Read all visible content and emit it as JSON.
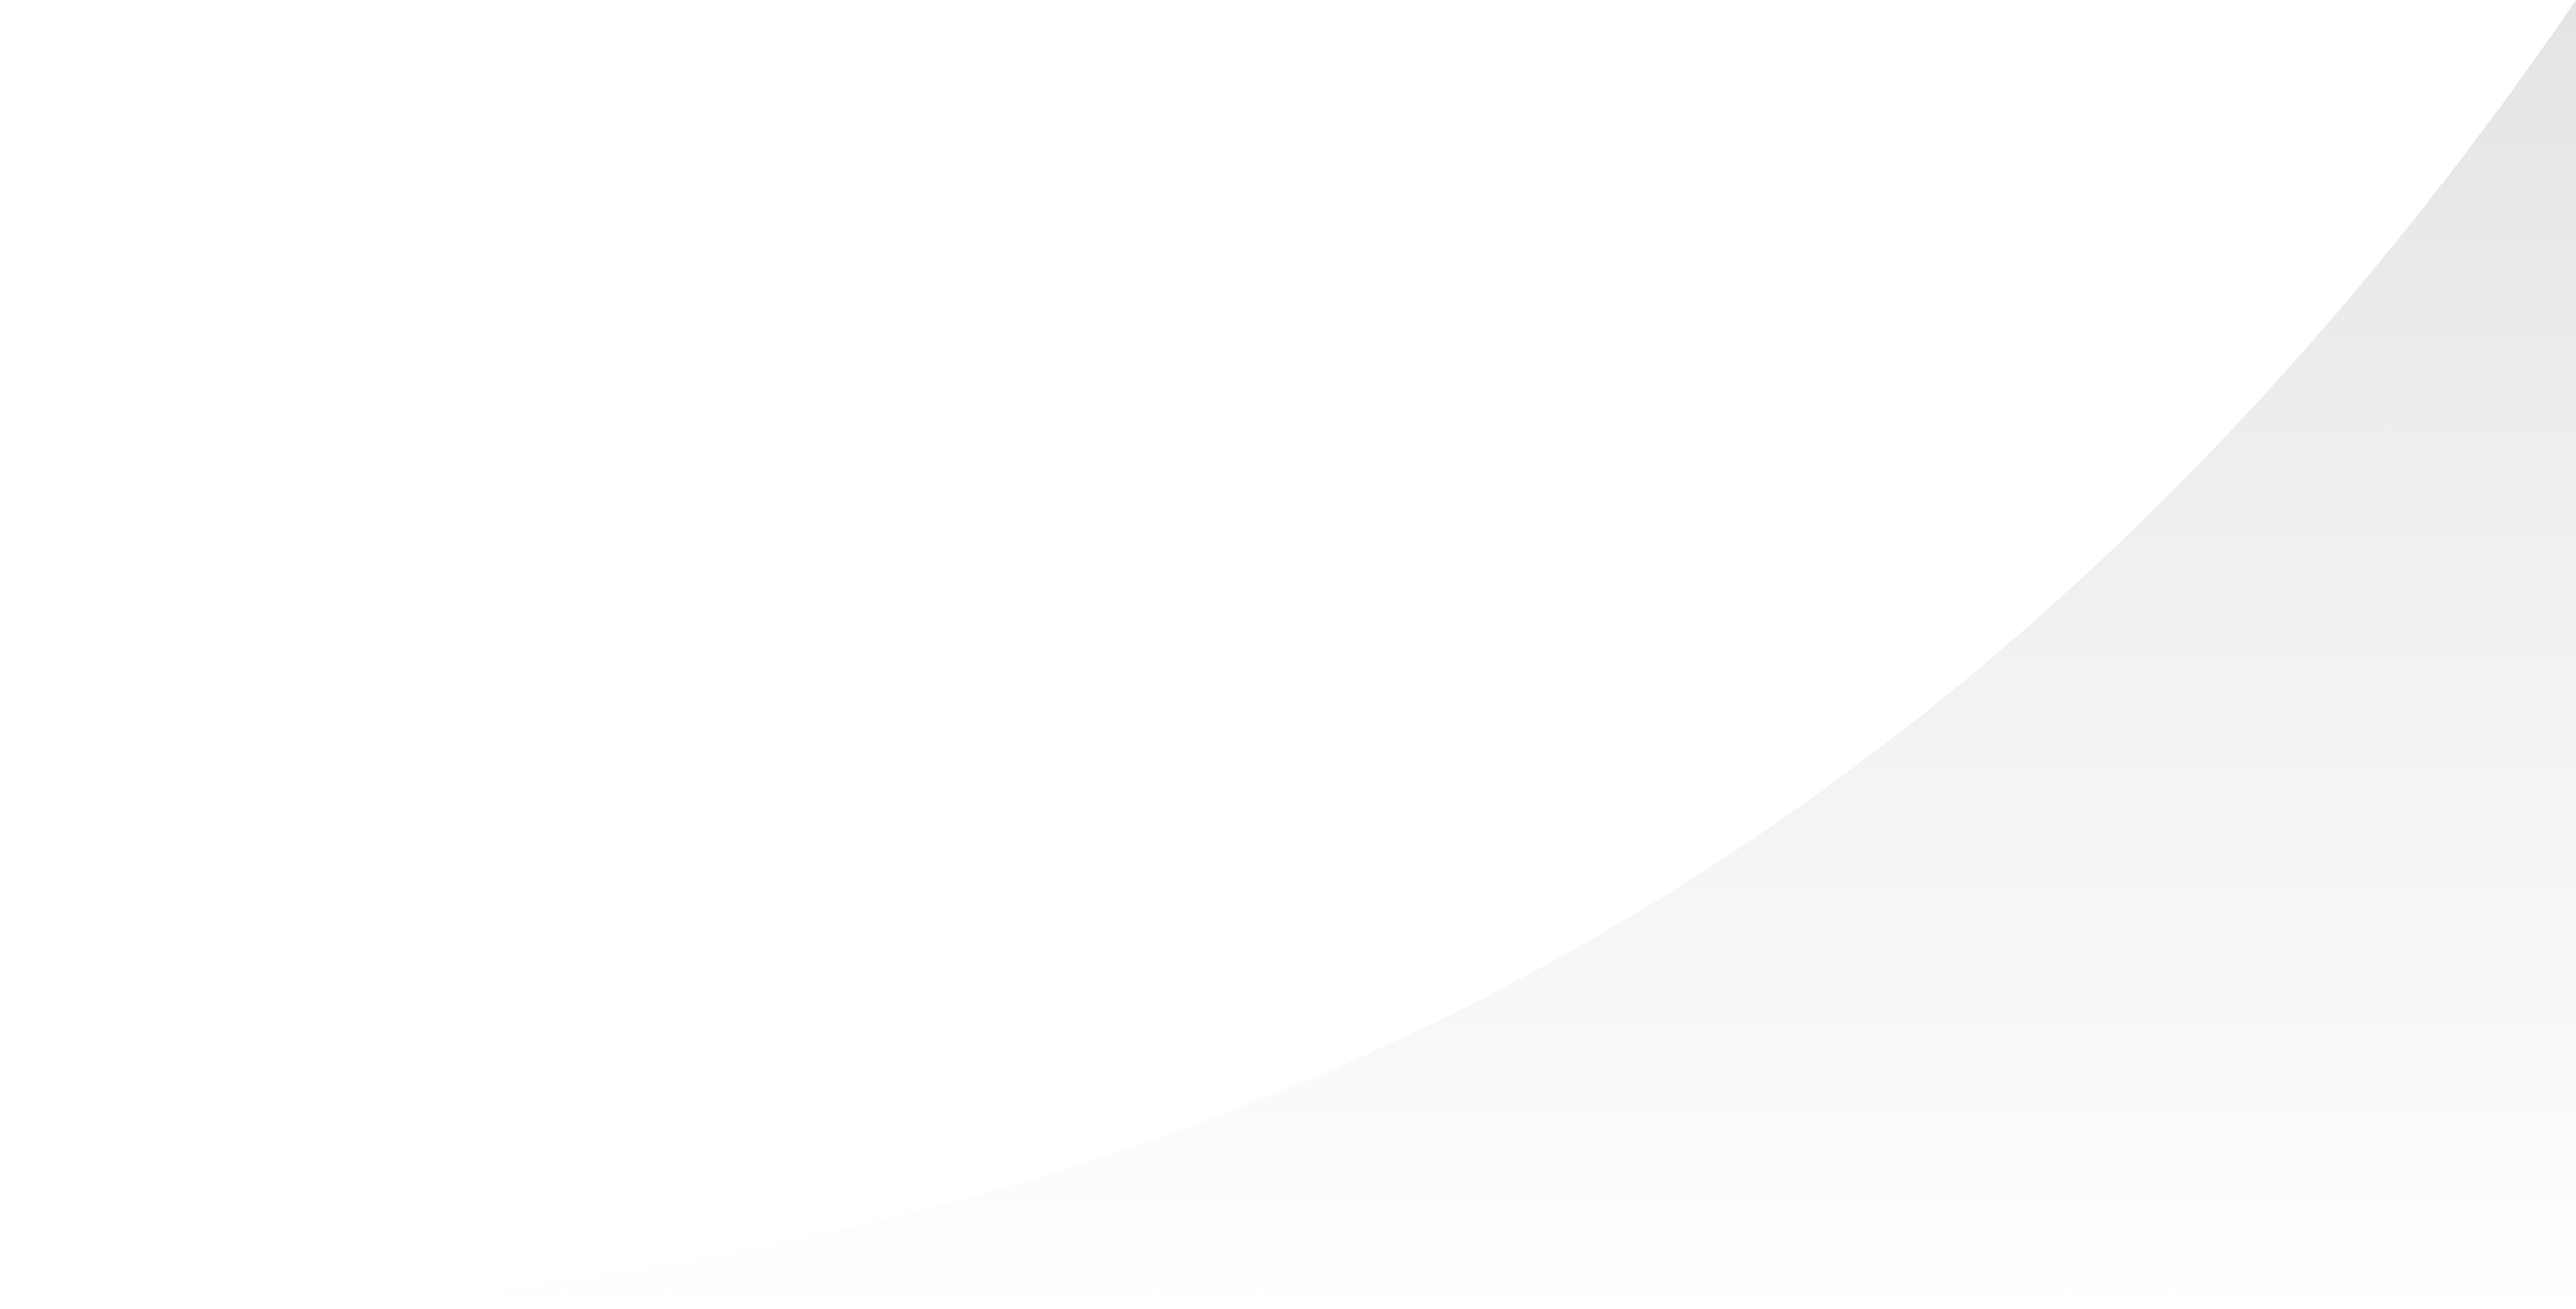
{
  "colors": {
    "background": "#ffffff",
    "gradient_top": "#e6e6e6",
    "gradient_mid": "#f3f3f3",
    "gradient_bottom": "#fefefe",
    "divider_line": "#ffffff"
  }
}
